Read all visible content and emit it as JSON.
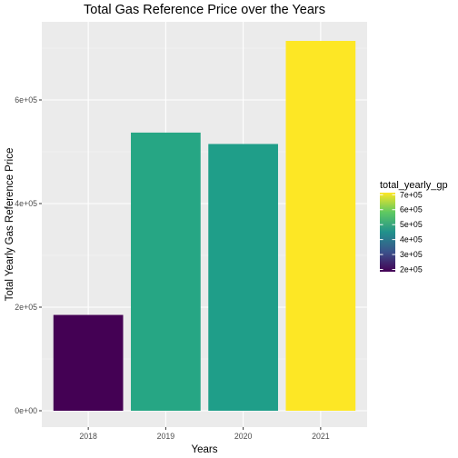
{
  "chart_data": {
    "type": "bar",
    "title": "Total Gas Reference Price over the Years",
    "xlabel": "Years",
    "ylabel": "Total Yearly Gas Reference Price",
    "categories": [
      "2018",
      "2019",
      "2020",
      "2021"
    ],
    "values": [
      185000,
      537000,
      515000,
      714000
    ],
    "ylim": [
      0,
      750000
    ],
    "yticks": [
      0,
      200000,
      400000,
      600000
    ],
    "ytick_labels": [
      "0e+00",
      "2e+05",
      "4e+05",
      "6e+05"
    ],
    "grid": true,
    "panel_background": "#ebebeb",
    "grid_color": "#ffffff",
    "fill_scale": "viridis",
    "legend": {
      "title": "total_yearly_gp",
      "placement": "right",
      "range": [
        185000,
        714000
      ],
      "breaks": [
        200000,
        300000,
        400000,
        500000,
        600000,
        700000
      ],
      "labels": [
        "2e+05",
        "3e+05",
        "4e+05",
        "5e+05",
        "6e+05",
        "7e+05"
      ]
    }
  }
}
